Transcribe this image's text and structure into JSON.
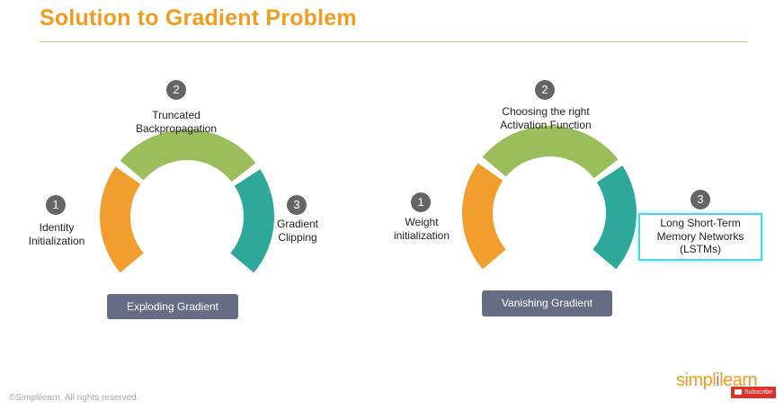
{
  "title": "Solution to Gradient Problem",
  "left": {
    "step1": {
      "num": "1",
      "label": "Identity\nInitialization"
    },
    "step2": {
      "num": "2",
      "label": "Truncated\nBackpropagation"
    },
    "step3": {
      "num": "3",
      "label": "Gradient\nClipping"
    },
    "caption": "Exploding Gradient"
  },
  "right": {
    "step1": {
      "num": "1",
      "label": "Weight\ninitialization"
    },
    "step2": {
      "num": "2",
      "label": "Choosing the right\nActivation Function"
    },
    "step3": {
      "num": "3",
      "label": "Long Short-Term\nMemory Networks\n(LSTMs)"
    },
    "caption": "Vanishing Gradient"
  },
  "footer": "©Simplilearn. All rights reserved.",
  "logo": {
    "part1": "simpl",
    "part2": "i",
    "part3": "learn"
  },
  "subscribe": "Subscribe",
  "colors": {
    "orange": "#f29e2e",
    "green": "#9bbd5c",
    "teal": "#2ea89b",
    "title": "#f29b1e",
    "badge": "#646d84"
  }
}
